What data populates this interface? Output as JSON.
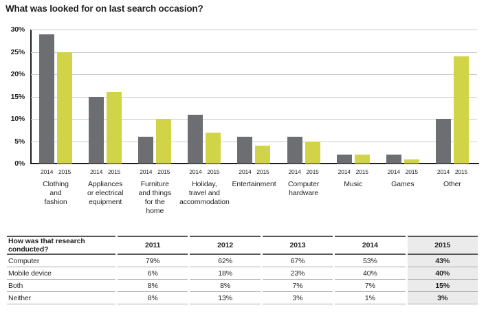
{
  "page": {
    "background": "#ffffff"
  },
  "chart": {
    "title": "What was looked for on last search occasion?",
    "y_axis": {
      "tick_labels": [
        "30%",
        "25%",
        "20%",
        "15%",
        "10%",
        "5%",
        "0%"
      ],
      "max": 30,
      "step": 5
    },
    "bar_year_labels": [
      "2014",
      "2015"
    ],
    "category_display_labels": [
      "Clothing\nand\nfashion",
      "Appliances\nor electrical\nequipment",
      "Furniture\nand things\nfor the\nhome",
      "Holiday,\ntravel and\naccommodation",
      "Entertainment",
      "Computer\nhardware",
      "Music",
      "Games",
      "Other"
    ],
    "colors": {
      "series_2014": "#6d6e71",
      "series_2015": "#d2d447",
      "gridline": "#c9cacc",
      "axis": "#1d1d1f",
      "text": "#231f20"
    }
  },
  "chart_data": {
    "type": "bar",
    "title": "What was looked for on last search occasion?",
    "categories": [
      "Clothing and fashion",
      "Appliances or electrical equipment",
      "Furniture and things for the home",
      "Holiday, travel and accommodation",
      "Entertainment",
      "Computer hardware",
      "Music",
      "Games",
      "Other"
    ],
    "series": [
      {
        "name": "2014",
        "values": [
          29,
          15,
          6,
          11,
          6,
          6,
          2,
          2,
          10
        ]
      },
      {
        "name": "2015",
        "values": [
          25,
          16,
          10,
          7,
          4,
          5,
          2,
          1,
          24
        ]
      }
    ],
    "xlabel": "",
    "ylabel": "",
    "ylim": [
      0,
      30
    ],
    "ytick_step": 5,
    "ytick_format": "percent",
    "grid": true,
    "legend_position": "none (years labeled beneath each bar)"
  },
  "table": {
    "title_column_header": "How was that research conducted?",
    "year_headers": [
      "2011",
      "2012",
      "2013",
      "2014",
      "2015"
    ],
    "rows": [
      {
        "label": "Computer",
        "values": [
          "79%",
          "62%",
          "67%",
          "53%",
          "43%"
        ]
      },
      {
        "label": "Mobile device",
        "values": [
          "6%",
          "18%",
          "23%",
          "40%",
          "40%"
        ]
      },
      {
        "label": "Both",
        "values": [
          "8%",
          "8%",
          "7%",
          "7%",
          "15%"
        ]
      },
      {
        "label": "Neither",
        "values": [
          "8%",
          "13%",
          "3%",
          "1%",
          "3%"
        ]
      }
    ],
    "highlighted_column": "2015",
    "highlight_color": "#ebebeb"
  }
}
